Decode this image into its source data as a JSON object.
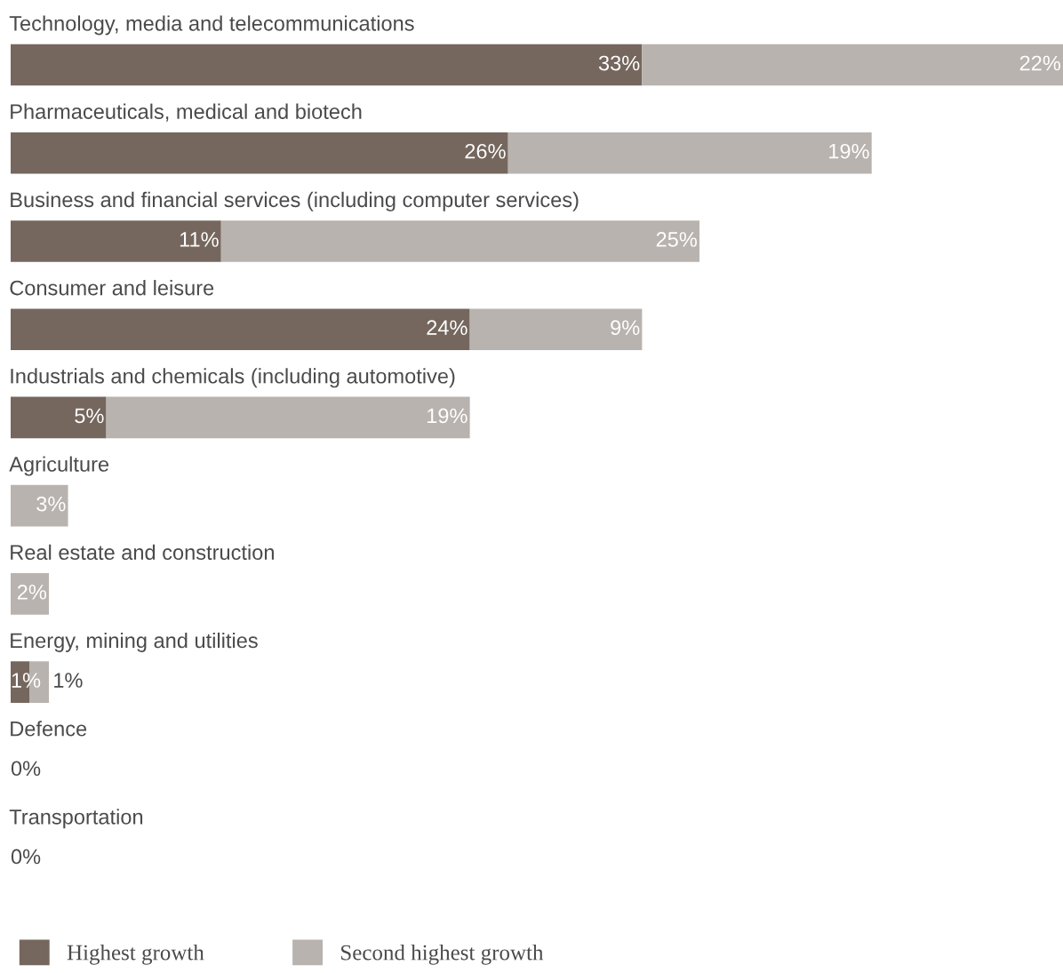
{
  "chart_data": {
    "type": "bar",
    "orientation": "horizontal",
    "stacked": true,
    "categories": [
      "Technology, media and telecommunications",
      "Pharmaceuticals, medical and biotech",
      "Business and financial services (including computer services)",
      "Consumer and leisure",
      "Industrials and chemicals (including automotive)",
      "Agriculture",
      "Real estate and construction",
      "Energy, mining and utilities",
      "Defence",
      "Transportation"
    ],
    "series": [
      {
        "name": "Highest growth",
        "color": "#75675e",
        "values": [
          33,
          26,
          11,
          24,
          5,
          0,
          0,
          1,
          0,
          0
        ],
        "value_labels": [
          "33%",
          "26%",
          "11%",
          "24%",
          "5%",
          null,
          null,
          "1%",
          "0%",
          "0%"
        ]
      },
      {
        "name": "Second highest growth",
        "color": "#b8b3ae",
        "values": [
          22,
          19,
          25,
          9,
          19,
          3,
          2,
          1,
          0,
          0
        ],
        "value_labels": [
          "22%",
          "19%",
          "25%",
          "9%",
          "19%",
          "3%",
          "2%",
          "1%",
          null,
          null
        ]
      }
    ],
    "xlim": [
      0,
      55
    ],
    "legend": "bottom left"
  }
}
